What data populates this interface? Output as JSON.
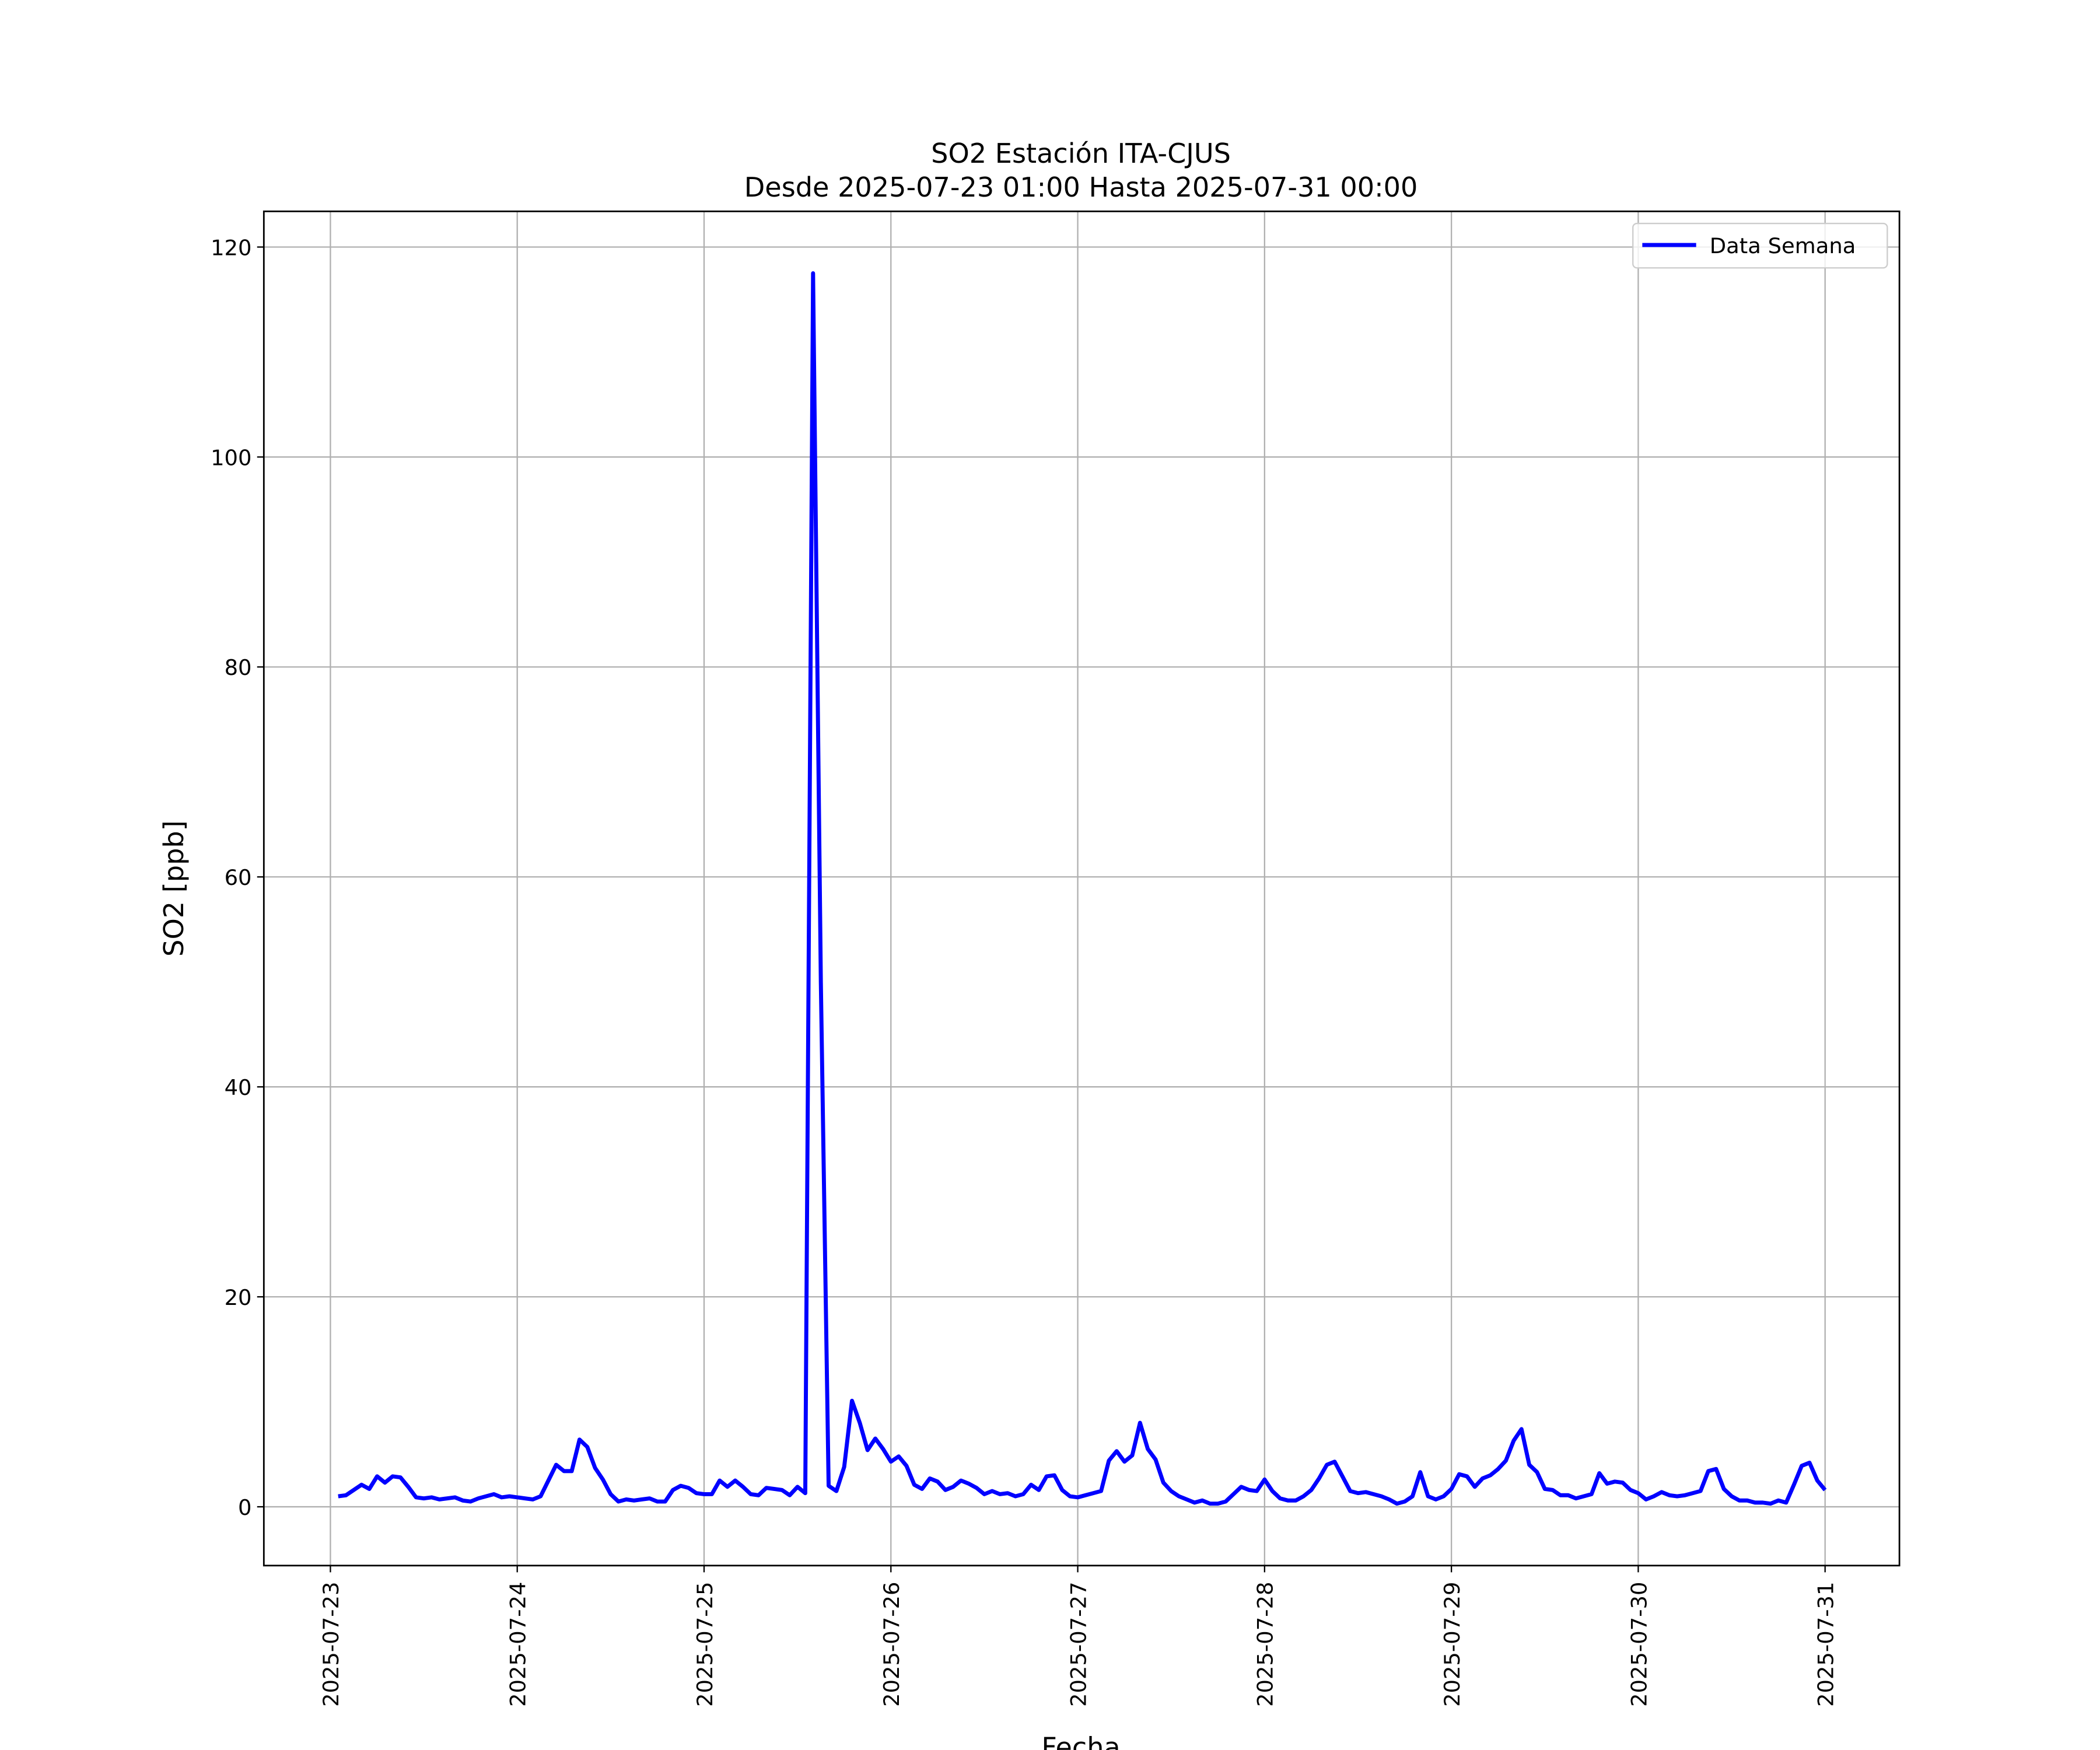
{
  "chart_data": {
    "type": "line",
    "title": "SO2 Estación ITA-CJUS",
    "subtitle": "Desde 2025-07-23 01:00 Hasta 2025-07-31 00:00",
    "x_label": "Fecha",
    "y_label": "SO2 [ppb]",
    "x": [
      "2025-07-23 01:00",
      "2025-07-23 02:00",
      "2025-07-23 03:00",
      "2025-07-23 04:00",
      "2025-07-23 05:00",
      "2025-07-23 06:00",
      "2025-07-23 07:00",
      "2025-07-23 08:00",
      "2025-07-23 09:00",
      "2025-07-23 10:00",
      "2025-07-23 11:00",
      "2025-07-23 12:00",
      "2025-07-23 13:00",
      "2025-07-23 14:00",
      "2025-07-23 15:00",
      "2025-07-23 16:00",
      "2025-07-23 17:00",
      "2025-07-23 18:00",
      "2025-07-23 19:00",
      "2025-07-23 20:00",
      "2025-07-23 21:00",
      "2025-07-23 22:00",
      "2025-07-23 23:00",
      "2025-07-24 00:00",
      "2025-07-24 01:00",
      "2025-07-24 02:00",
      "2025-07-24 03:00",
      "2025-07-24 04:00",
      "2025-07-24 05:00",
      "2025-07-24 06:00",
      "2025-07-24 07:00",
      "2025-07-24 08:00",
      "2025-07-24 09:00",
      "2025-07-24 10:00",
      "2025-07-24 11:00",
      "2025-07-24 12:00",
      "2025-07-24 13:00",
      "2025-07-24 14:00",
      "2025-07-24 15:00",
      "2025-07-24 16:00",
      "2025-07-24 17:00",
      "2025-07-24 18:00",
      "2025-07-24 19:00",
      "2025-07-24 20:00",
      "2025-07-24 21:00",
      "2025-07-24 22:00",
      "2025-07-24 23:00",
      "2025-07-25 00:00",
      "2025-07-25 01:00",
      "2025-07-25 02:00",
      "2025-07-25 03:00",
      "2025-07-25 04:00",
      "2025-07-25 05:00",
      "2025-07-25 06:00",
      "2025-07-25 07:00",
      "2025-07-25 08:00",
      "2025-07-25 09:00",
      "2025-07-25 10:00",
      "2025-07-25 11:00",
      "2025-07-25 12:00",
      "2025-07-25 13:00",
      "2025-07-25 14:00",
      "2025-07-25 15:00",
      "2025-07-25 16:00",
      "2025-07-25 17:00",
      "2025-07-25 18:00",
      "2025-07-25 19:00",
      "2025-07-25 20:00",
      "2025-07-25 21:00",
      "2025-07-25 22:00",
      "2025-07-25 23:00",
      "2025-07-26 00:00",
      "2025-07-26 01:00",
      "2025-07-26 02:00",
      "2025-07-26 03:00",
      "2025-07-26 04:00",
      "2025-07-26 05:00",
      "2025-07-26 06:00",
      "2025-07-26 07:00",
      "2025-07-26 08:00",
      "2025-07-26 09:00",
      "2025-07-26 10:00",
      "2025-07-26 11:00",
      "2025-07-26 12:00",
      "2025-07-26 13:00",
      "2025-07-26 14:00",
      "2025-07-26 15:00",
      "2025-07-26 16:00",
      "2025-07-26 17:00",
      "2025-07-26 18:00",
      "2025-07-26 19:00",
      "2025-07-26 20:00",
      "2025-07-26 21:00",
      "2025-07-26 22:00",
      "2025-07-26 23:00",
      "2025-07-27 00:00",
      "2025-07-27 01:00",
      "2025-07-27 02:00",
      "2025-07-27 03:00",
      "2025-07-27 04:00",
      "2025-07-27 05:00",
      "2025-07-27 06:00",
      "2025-07-27 07:00",
      "2025-07-27 08:00",
      "2025-07-27 09:00",
      "2025-07-27 10:00",
      "2025-07-27 11:00",
      "2025-07-27 12:00",
      "2025-07-27 13:00",
      "2025-07-27 14:00",
      "2025-07-27 15:00",
      "2025-07-27 16:00",
      "2025-07-27 17:00",
      "2025-07-27 18:00",
      "2025-07-27 19:00",
      "2025-07-27 20:00",
      "2025-07-27 21:00",
      "2025-07-27 22:00",
      "2025-07-27 23:00",
      "2025-07-28 00:00",
      "2025-07-28 01:00",
      "2025-07-28 02:00",
      "2025-07-28 03:00",
      "2025-07-28 04:00",
      "2025-07-28 05:00",
      "2025-07-28 06:00",
      "2025-07-28 07:00",
      "2025-07-28 08:00",
      "2025-07-28 09:00",
      "2025-07-28 10:00",
      "2025-07-28 11:00",
      "2025-07-28 12:00",
      "2025-07-28 13:00",
      "2025-07-28 14:00",
      "2025-07-28 15:00",
      "2025-07-28 16:00",
      "2025-07-28 17:00",
      "2025-07-28 18:00",
      "2025-07-28 19:00",
      "2025-07-28 20:00",
      "2025-07-28 21:00",
      "2025-07-28 22:00",
      "2025-07-28 23:00",
      "2025-07-29 00:00",
      "2025-07-29 01:00",
      "2025-07-29 02:00",
      "2025-07-29 03:00",
      "2025-07-29 04:00",
      "2025-07-29 05:00",
      "2025-07-29 06:00",
      "2025-07-29 07:00",
      "2025-07-29 08:00",
      "2025-07-29 09:00",
      "2025-07-29 10:00",
      "2025-07-29 11:00",
      "2025-07-29 12:00",
      "2025-07-29 13:00",
      "2025-07-29 14:00",
      "2025-07-29 15:00",
      "2025-07-29 16:00",
      "2025-07-29 17:00",
      "2025-07-29 18:00",
      "2025-07-29 19:00",
      "2025-07-29 20:00",
      "2025-07-29 21:00",
      "2025-07-29 22:00",
      "2025-07-29 23:00",
      "2025-07-30 00:00",
      "2025-07-30 01:00",
      "2025-07-30 02:00",
      "2025-07-30 03:00",
      "2025-07-30 04:00",
      "2025-07-30 05:00",
      "2025-07-30 06:00",
      "2025-07-30 07:00",
      "2025-07-30 08:00",
      "2025-07-30 09:00",
      "2025-07-30 10:00",
      "2025-07-30 11:00",
      "2025-07-30 12:00",
      "2025-07-30 13:00",
      "2025-07-30 14:00",
      "2025-07-30 15:00",
      "2025-07-30 16:00",
      "2025-07-30 17:00",
      "2025-07-30 18:00",
      "2025-07-30 19:00",
      "2025-07-30 20:00",
      "2025-07-30 21:00",
      "2025-07-30 22:00",
      "2025-07-30 23:00",
      "2025-07-31 00:00"
    ],
    "series": [
      {
        "name": "Data Semana",
        "color": "#0000ff",
        "values": [
          1.0,
          1.1,
          1.6,
          2.1,
          1.7,
          2.9,
          2.3,
          2.9,
          2.8,
          1.9,
          0.9,
          0.8,
          0.9,
          0.7,
          0.8,
          0.9,
          0.6,
          0.5,
          0.8,
          1.0,
          1.2,
          0.9,
          1.0,
          0.9,
          0.8,
          0.7,
          1.0,
          2.5,
          4.0,
          3.4,
          3.4,
          6.4,
          5.7,
          3.7,
          2.6,
          1.2,
          0.5,
          0.7,
          0.6,
          0.7,
          0.8,
          0.5,
          0.5,
          1.6,
          2.0,
          1.8,
          1.3,
          1.2,
          1.2,
          2.5,
          1.9,
          2.5,
          1.9,
          1.2,
          1.1,
          1.8,
          1.7,
          1.6,
          1.1,
          1.9,
          1.3,
          117.5,
          50,
          2.0,
          1.5,
          3.8,
          10.1,
          8.0,
          5.4,
          6.5,
          5.5,
          4.3,
          4.8,
          3.9,
          2.1,
          1.7,
          2.7,
          2.4,
          1.6,
          1.9,
          2.5,
          2.2,
          1.8,
          1.2,
          1.5,
          1.2,
          1.3,
          1.0,
          1.2,
          2.1,
          1.6,
          2.9,
          3.0,
          1.6,
          1.0,
          0.9,
          1.1,
          1.3,
          1.5,
          4.4,
          5.3,
          4.3,
          4.9,
          8.0,
          5.5,
          4.5,
          2.3,
          1.5,
          1.0,
          0.7,
          0.4,
          0.6,
          0.3,
          0.3,
          0.5,
          1.2,
          1.9,
          1.6,
          1.5,
          2.6,
          1.5,
          0.8,
          0.6,
          0.6,
          1.0,
          1.6,
          2.7,
          4.0,
          4.3,
          2.9,
          1.5,
          1.3,
          1.4,
          1.2,
          1.0,
          0.7,
          0.3,
          0.5,
          1.0,
          3.3,
          1.0,
          0.7,
          1.0,
          1.7,
          3.1,
          2.9,
          1.9,
          2.7,
          3.0,
          3.6,
          4.4,
          6.3,
          7.4,
          4.0,
          3.3,
          1.7,
          1.6,
          1.1,
          1.1,
          0.8,
          1.0,
          1.2,
          3.2,
          2.2,
          2.4,
          2.3,
          1.6,
          1.3,
          0.7,
          1.0,
          1.4,
          1.1,
          1.0,
          1.1,
          1.3,
          1.5,
          3.4,
          3.6,
          1.7,
          1.0,
          0.6,
          0.6,
          0.4,
          0.4,
          0.3,
          0.6,
          0.4,
          2.1,
          3.9,
          4.2,
          2.5,
          1.6
        ]
      }
    ],
    "xlim": [
      "2025-07-22 15:27",
      "2025-07-31 09:33"
    ],
    "xticks": [
      "2025-07-23",
      "2025-07-24",
      "2025-07-25",
      "2025-07-26",
      "2025-07-27",
      "2025-07-28",
      "2025-07-29",
      "2025-07-30",
      "2025-07-31"
    ],
    "ylim": [
      -5.6,
      123.4
    ],
    "yticks": [
      0,
      20,
      40,
      60,
      80,
      100,
      120
    ],
    "grid": true,
    "legend": "upper right"
  }
}
